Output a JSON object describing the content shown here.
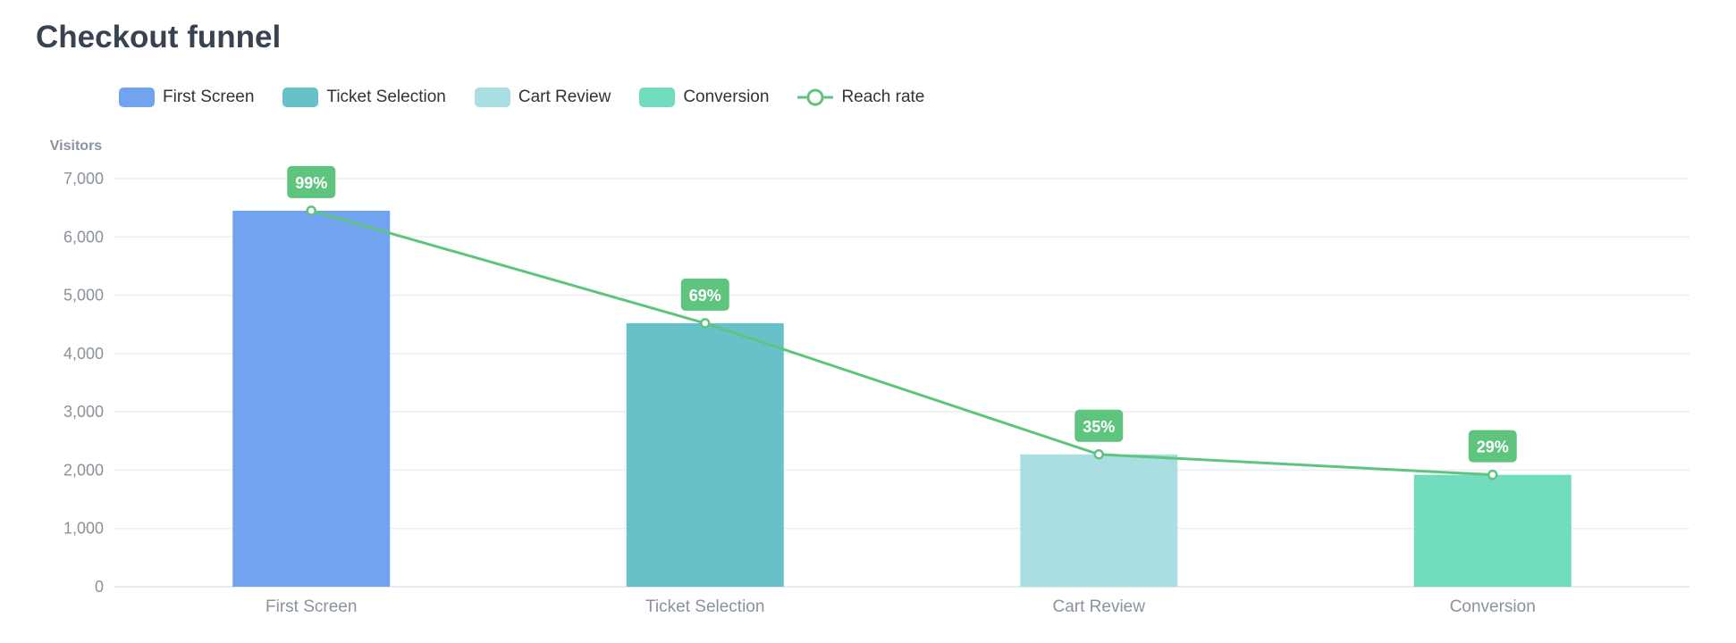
{
  "title": "Checkout funnel",
  "legend": [
    {
      "label": "First Screen",
      "color": "#72a3f1",
      "kind": "bar"
    },
    {
      "label": "Ticket Selection",
      "color": "#67c1c8",
      "kind": "bar"
    },
    {
      "label": "Cart Review",
      "color": "#a9dee2",
      "kind": "bar"
    },
    {
      "label": "Conversion",
      "color": "#71dcbe",
      "kind": "bar"
    },
    {
      "label": "Reach rate",
      "color": "#5ec47e",
      "kind": "line"
    }
  ],
  "chart_data": {
    "type": "bar",
    "title": "Checkout funnel",
    "ylabel": "Visitors",
    "xlabel": "",
    "categories": [
      "First Screen",
      "Ticket Selection",
      "Cart Review",
      "Conversion"
    ],
    "series": [
      {
        "name": "Visitors",
        "values": [
          6450,
          4520,
          2270,
          1920
        ],
        "colors": [
          "#72a3f1",
          "#67c1c8",
          "#a9dee2",
          "#71dcbe"
        ]
      },
      {
        "name": "Reach rate",
        "type": "line",
        "values": [
          6450,
          4520,
          2270,
          1920
        ],
        "labels": [
          "99%",
          "69%",
          "35%",
          "29%"
        ],
        "color": "#5ec47e"
      }
    ],
    "ylim": [
      0,
      7000
    ],
    "yticks": [
      0,
      1000,
      2000,
      3000,
      4000,
      5000,
      6000,
      7000
    ],
    "ytick_labels": [
      "0",
      "1,000",
      "2,000",
      "3,000",
      "4,000",
      "5,000",
      "6,000",
      "7,000"
    ],
    "grid": true,
    "legend_position": "top-left"
  }
}
